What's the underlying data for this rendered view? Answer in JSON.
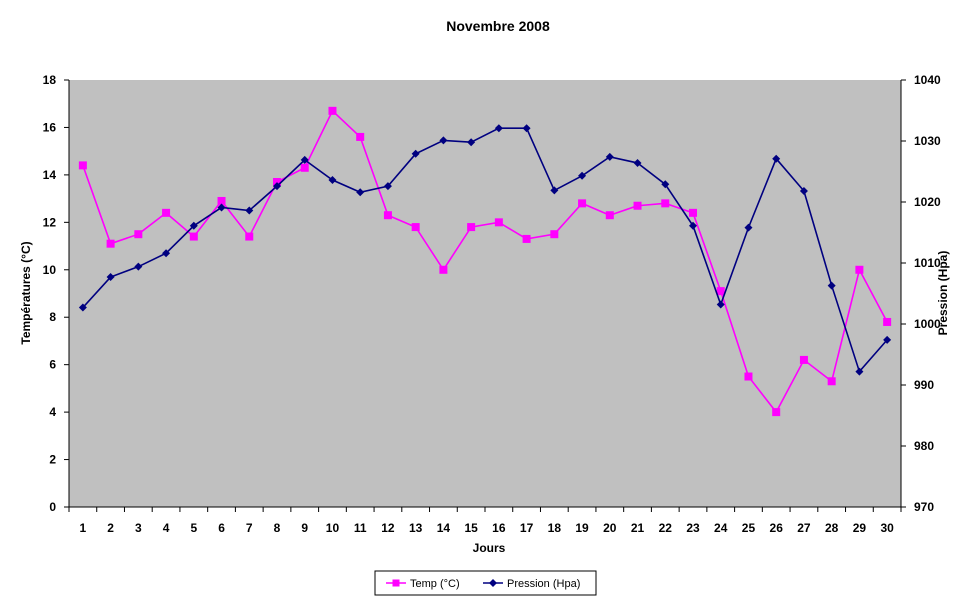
{
  "chart_data": {
    "type": "line",
    "title": "Novembre 2008",
    "xlabel": "Jours",
    "ylabel": "Températures  (°C)",
    "y2label": "Pression (Hpa)",
    "x": [
      1,
      2,
      3,
      4,
      5,
      6,
      7,
      8,
      9,
      10,
      11,
      12,
      13,
      14,
      15,
      16,
      17,
      18,
      19,
      20,
      21,
      22,
      23,
      24,
      25,
      26,
      27,
      28,
      29,
      30
    ],
    "ylim": [
      0,
      18
    ],
    "yticks": [
      0,
      2,
      4,
      6,
      8,
      10,
      12,
      14,
      16,
      18
    ],
    "y2lim": [
      970,
      1040
    ],
    "y2ticks": [
      970,
      980,
      990,
      1000,
      1010,
      1020,
      1030,
      1040
    ],
    "grid": false,
    "plot_background": "#c0c0c0",
    "legend_position": "bottom",
    "series": [
      {
        "name": "Temp (°C)",
        "axis": "left",
        "color": "#ff00ff",
        "marker": "square",
        "values": [
          14.4,
          11.1,
          11.5,
          12.4,
          11.4,
          12.9,
          11.4,
          13.7,
          14.3,
          16.7,
          15.6,
          12.3,
          11.8,
          10.0,
          11.8,
          12.0,
          11.3,
          11.5,
          12.8,
          12.3,
          12.7,
          12.8,
          12.4,
          9.1,
          5.5,
          4.0,
          6.2,
          5.3,
          10.0,
          7.8
        ]
      },
      {
        "name": "Pression (Hpa)",
        "axis": "right",
        "color": "#000080",
        "marker": "diamond",
        "values": [
          1002.7,
          1007.7,
          1009.4,
          1011.6,
          1016.1,
          1019.1,
          1018.6,
          1022.6,
          1026.9,
          1023.6,
          1021.6,
          1022.6,
          1027.9,
          1030.1,
          1029.8,
          1032.1,
          1032.1,
          1021.9,
          1024.3,
          1027.4,
          1026.4,
          1022.9,
          1016.1,
          1003.2,
          1015.8,
          1027.1,
          1021.8,
          1006.3,
          992.2,
          997.4
        ]
      }
    ]
  }
}
